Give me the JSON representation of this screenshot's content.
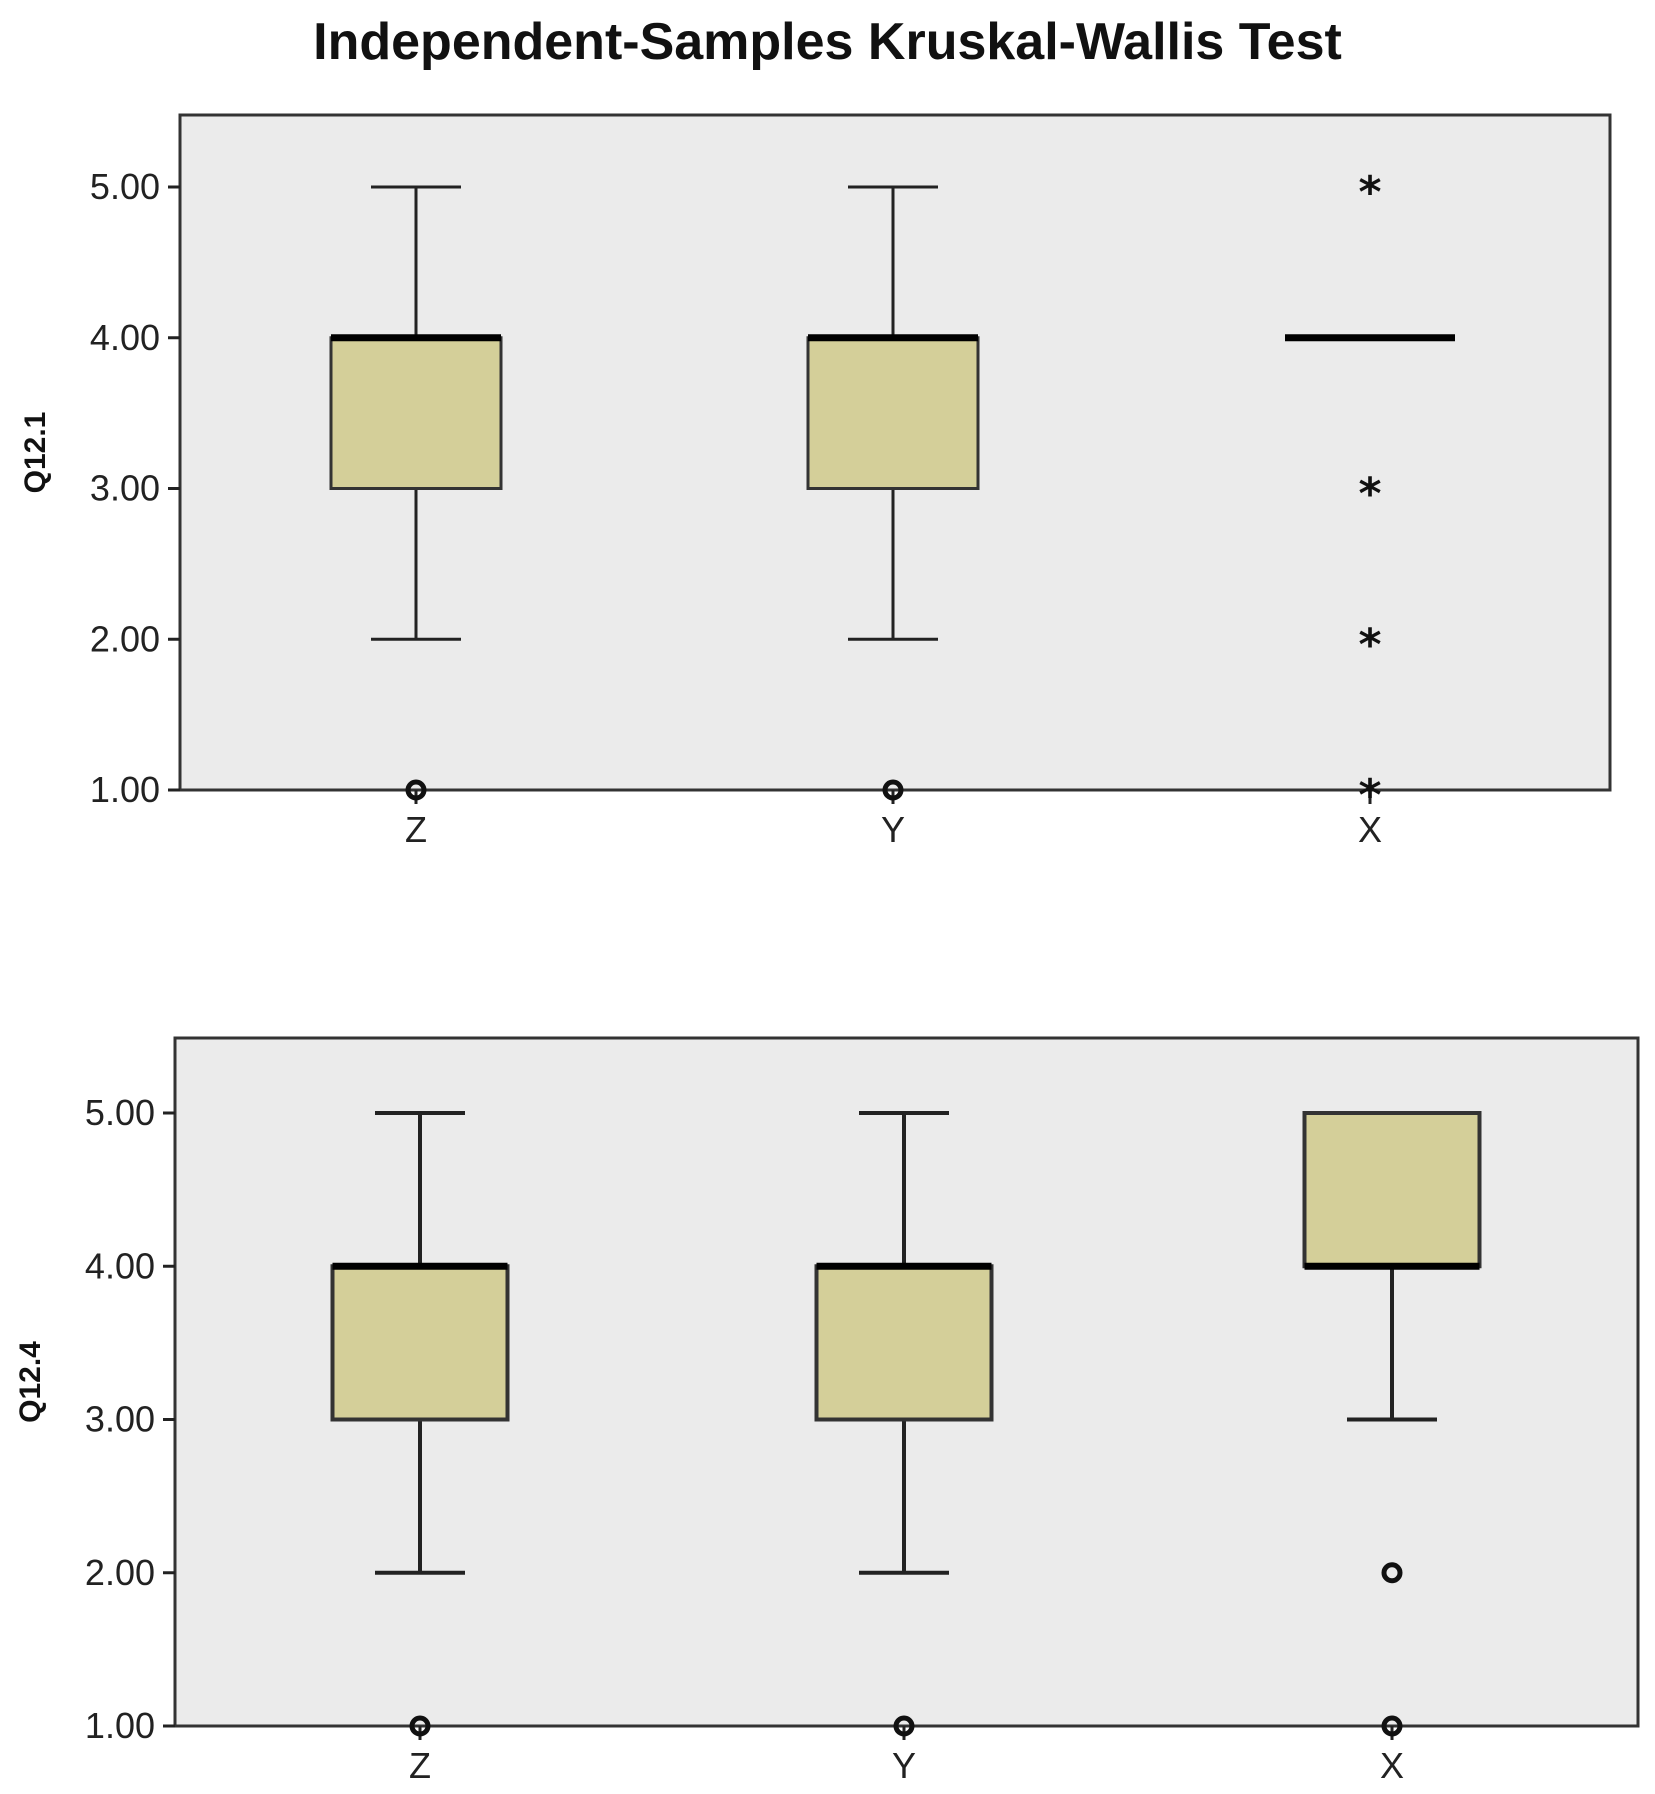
{
  "title": "Independent-Samples Kruskal-Wallis Test",
  "colors": {
    "plot_background": "#ebebeb",
    "box_fill": "#d4cf99",
    "stroke": "#000000"
  },
  "chart_data": [
    {
      "type": "boxplot",
      "ylabel": "Q12.1",
      "xlabel": "",
      "ylim": [
        1,
        5
      ],
      "yticks": [
        "1.00",
        "2.00",
        "3.00",
        "4.00",
        "5.00"
      ],
      "grid": false,
      "categories": [
        "Z",
        "Y",
        "X"
      ],
      "boxes": [
        {
          "category": "Z",
          "whisker_low": 2,
          "q1": 3,
          "median": 4,
          "q3": 4,
          "whisker_high": 5,
          "outliers": [
            {
              "value": 1,
              "marker": "circle"
            }
          ]
        },
        {
          "category": "Y",
          "whisker_low": 2,
          "q1": 3,
          "median": 4,
          "q3": 4,
          "whisker_high": 5,
          "outliers": [
            {
              "value": 1,
              "marker": "circle"
            }
          ]
        },
        {
          "category": "X",
          "whisker_low": 4,
          "q1": 4,
          "median": 4,
          "q3": 4,
          "whisker_high": 4,
          "outliers": [
            {
              "value": 5,
              "marker": "star"
            },
            {
              "value": 3,
              "marker": "star"
            },
            {
              "value": 2,
              "marker": "star"
            },
            {
              "value": 1,
              "marker": "star"
            }
          ]
        }
      ]
    },
    {
      "type": "boxplot",
      "ylabel": "Q12.4",
      "xlabel": "",
      "ylim": [
        1,
        5
      ],
      "yticks": [
        "1.00",
        "2.00",
        "3.00",
        "4.00",
        "5.00"
      ],
      "grid": false,
      "categories": [
        "Z",
        "Y",
        "X"
      ],
      "boxes": [
        {
          "category": "Z",
          "whisker_low": 2,
          "q1": 3,
          "median": 4,
          "q3": 4,
          "whisker_high": 5,
          "outliers": [
            {
              "value": 1,
              "marker": "circle"
            }
          ]
        },
        {
          "category": "Y",
          "whisker_low": 2,
          "q1": 3,
          "median": 4,
          "q3": 4,
          "whisker_high": 5,
          "outliers": [
            {
              "value": 1,
              "marker": "circle"
            }
          ]
        },
        {
          "category": "X",
          "whisker_low": 3,
          "q1": 4,
          "median": 4,
          "q3": 5,
          "whisker_high": 5,
          "outliers": [
            {
              "value": 2,
              "marker": "circle"
            },
            {
              "value": 1,
              "marker": "circle"
            }
          ]
        }
      ]
    }
  ]
}
